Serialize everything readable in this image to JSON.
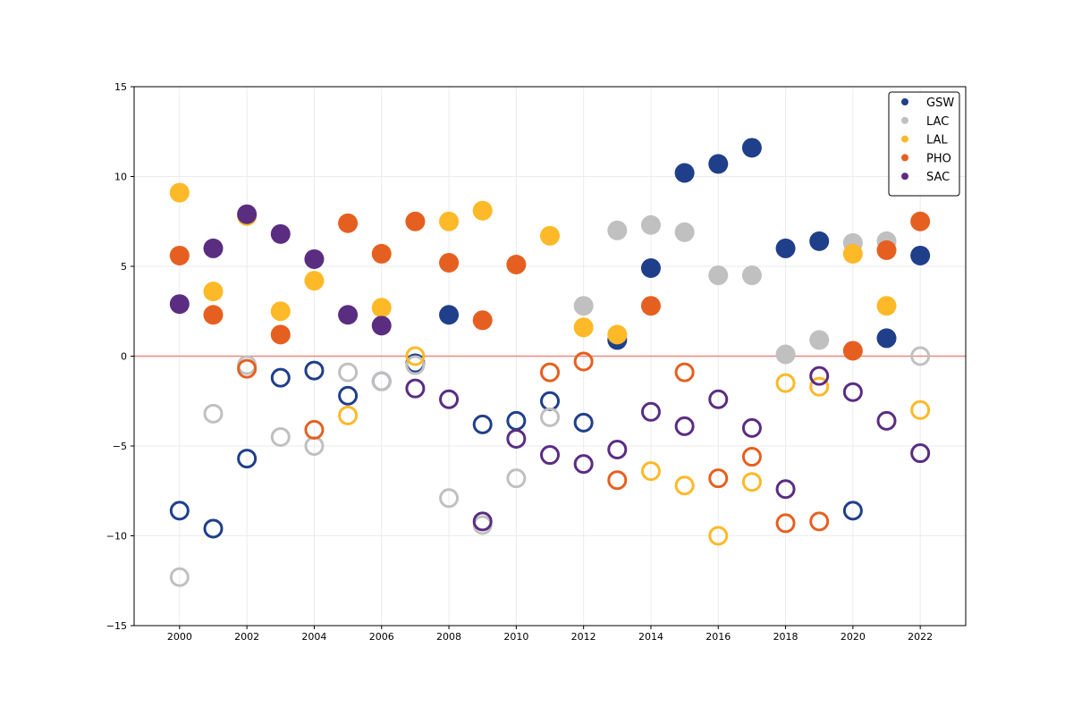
{
  "chart_data": {
    "type": "scatter",
    "title": "",
    "xlabel": "",
    "ylabel": "",
    "xlim": [
      1998.65,
      2023.35
    ],
    "ylim": [
      -15,
      15
    ],
    "xticks": [
      2000,
      2002,
      2004,
      2006,
      2008,
      2010,
      2012,
      2014,
      2016,
      2018,
      2020,
      2022
    ],
    "yticks": [
      -15,
      -10,
      -5,
      0,
      5,
      10,
      15
    ],
    "ytick_labels": [
      "−15",
      "−10",
      "−5",
      "0",
      "5",
      "10",
      "15"
    ],
    "grid": true,
    "reference_line": {
      "y": 0,
      "color": "#e88880"
    },
    "legend_position": "top-right",
    "marker_note": "filled = positive, hollow = negative",
    "series": [
      {
        "name": "GSW",
        "color": "#1f3f8a",
        "points": [
          [
            2000,
            -8.6
          ],
          [
            2001,
            -9.6
          ],
          [
            2002,
            -5.7
          ],
          [
            2003,
            -1.2
          ],
          [
            2004,
            -0.8
          ],
          [
            2005,
            -2.2
          ],
          [
            2006,
            -1.4
          ],
          [
            2007,
            -0.4
          ],
          [
            2008,
            2.3
          ],
          [
            2009,
            -3.8
          ],
          [
            2010,
            -3.6
          ],
          [
            2011,
            -2.5
          ],
          [
            2012,
            -3.7
          ],
          [
            2013,
            0.9
          ],
          [
            2014,
            4.9
          ],
          [
            2015,
            10.2
          ],
          [
            2016,
            10.7
          ],
          [
            2017,
            11.6
          ],
          [
            2018,
            6.0
          ],
          [
            2019,
            6.4
          ],
          [
            2020,
            -8.6
          ],
          [
            2021,
            1.0
          ],
          [
            2022,
            5.6
          ]
        ]
      },
      {
        "name": "LAC",
        "color": "#c0c0c0",
        "points": [
          [
            2000,
            -12.3
          ],
          [
            2001,
            -3.2
          ],
          [
            2002,
            -0.5
          ],
          [
            2003,
            -4.5
          ],
          [
            2004,
            -5.0
          ],
          [
            2005,
            -0.9
          ],
          [
            2006,
            -1.4
          ],
          [
            2007,
            -0.5
          ],
          [
            2008,
            -7.9
          ],
          [
            2009,
            -9.4
          ],
          [
            2010,
            -6.8
          ],
          [
            2011,
            -3.4
          ],
          [
            2012,
            2.8
          ],
          [
            2013,
            7.0
          ],
          [
            2014,
            7.3
          ],
          [
            2015,
            6.9
          ],
          [
            2016,
            4.5
          ],
          [
            2017,
            4.5
          ],
          [
            2018,
            0.1
          ],
          [
            2019,
            0.9
          ],
          [
            2020,
            6.3
          ],
          [
            2021,
            6.4
          ],
          [
            2022,
            0.0
          ]
        ]
      },
      {
        "name": "LAL",
        "color": "#fdb927",
        "points": [
          [
            2000,
            9.1
          ],
          [
            2001,
            3.6
          ],
          [
            2002,
            7.8
          ],
          [
            2003,
            2.5
          ],
          [
            2004,
            4.2
          ],
          [
            2005,
            -3.3
          ],
          [
            2006,
            2.7
          ],
          [
            2007,
            0.0
          ],
          [
            2008,
            7.5
          ],
          [
            2009,
            8.1
          ],
          [
            2011,
            6.7
          ],
          [
            2012,
            1.6
          ],
          [
            2013,
            1.2
          ],
          [
            2014,
            -6.4
          ],
          [
            2015,
            -7.2
          ],
          [
            2016,
            -10.0
          ],
          [
            2017,
            -7.0
          ],
          [
            2018,
            -1.5
          ],
          [
            2019,
            -1.7
          ],
          [
            2020,
            5.7
          ],
          [
            2021,
            2.8
          ],
          [
            2022,
            -3.0
          ]
        ]
      },
      {
        "name": "PHO",
        "color": "#e56020",
        "points": [
          [
            2000,
            5.6
          ],
          [
            2001,
            2.3
          ],
          [
            2002,
            -0.7
          ],
          [
            2003,
            1.2
          ],
          [
            2004,
            -4.1
          ],
          [
            2005,
            7.4
          ],
          [
            2006,
            5.7
          ],
          [
            2007,
            7.5
          ],
          [
            2008,
            5.2
          ],
          [
            2009,
            2.0
          ],
          [
            2010,
            5.1
          ],
          [
            2011,
            -0.9
          ],
          [
            2012,
            -0.3
          ],
          [
            2013,
            -6.9
          ],
          [
            2014,
            2.8
          ],
          [
            2015,
            -0.9
          ],
          [
            2016,
            -6.8
          ],
          [
            2017,
            -5.6
          ],
          [
            2018,
            -9.3
          ],
          [
            2019,
            -9.2
          ],
          [
            2020,
            0.3
          ],
          [
            2021,
            5.9
          ],
          [
            2022,
            7.5
          ]
        ]
      },
      {
        "name": "SAC",
        "color": "#5a2d81",
        "points": [
          [
            2000,
            2.9
          ],
          [
            2001,
            6.0
          ],
          [
            2002,
            7.9
          ],
          [
            2003,
            6.8
          ],
          [
            2004,
            5.4
          ],
          [
            2005,
            2.3
          ],
          [
            2006,
            1.7
          ],
          [
            2007,
            -1.8
          ],
          [
            2008,
            -2.4
          ],
          [
            2009,
            -9.2
          ],
          [
            2010,
            -4.6
          ],
          [
            2011,
            -5.5
          ],
          [
            2012,
            -6.0
          ],
          [
            2013,
            -5.2
          ],
          [
            2014,
            -3.1
          ],
          [
            2015,
            -3.9
          ],
          [
            2016,
            -2.4
          ],
          [
            2017,
            -4.0
          ],
          [
            2018,
            -7.4
          ],
          [
            2019,
            -1.1
          ],
          [
            2020,
            -2.0
          ],
          [
            2021,
            -3.6
          ],
          [
            2022,
            -5.4
          ]
        ]
      }
    ]
  }
}
